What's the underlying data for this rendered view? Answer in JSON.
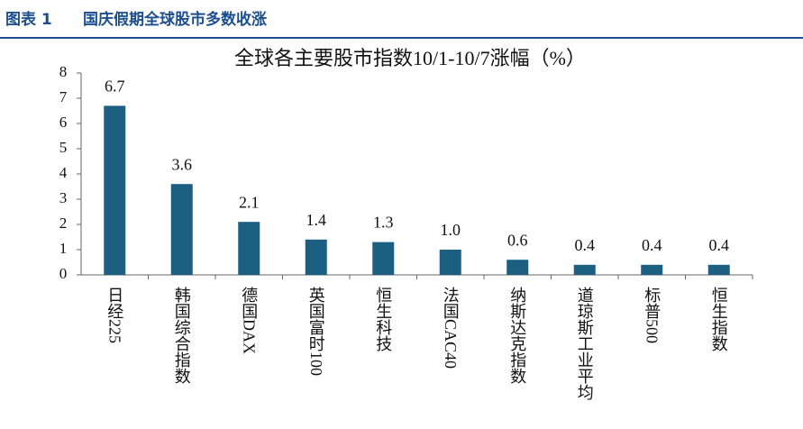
{
  "header": {
    "label": "图表 1",
    "title": "国庆假期全球股市多数收涨"
  },
  "chart_data": {
    "type": "bar",
    "title": "全球各主要股市指数10/1-10/7涨幅（%）",
    "categories": [
      "日经225",
      "韩国综合指数",
      "德国DAX",
      "英国富时100",
      "恒生科技",
      "法国CAC40",
      "纳斯达克指数",
      "道琼斯工业平均",
      "标普500",
      "恒生指数"
    ],
    "values": [
      6.7,
      3.6,
      2.1,
      1.4,
      1.3,
      1.0,
      0.6,
      0.4,
      0.4,
      0.4
    ],
    "value_labels": [
      "6.7",
      "3.6",
      "2.1",
      "1.4",
      "1.3",
      "1.0",
      "0.6",
      "0.4",
      "0.4",
      "0.4"
    ],
    "color": "#1c5f80",
    "ylim": [
      0,
      8
    ],
    "yticks": [
      0,
      1,
      2,
      3,
      4,
      5,
      6,
      7,
      8
    ],
    "grid": false
  }
}
